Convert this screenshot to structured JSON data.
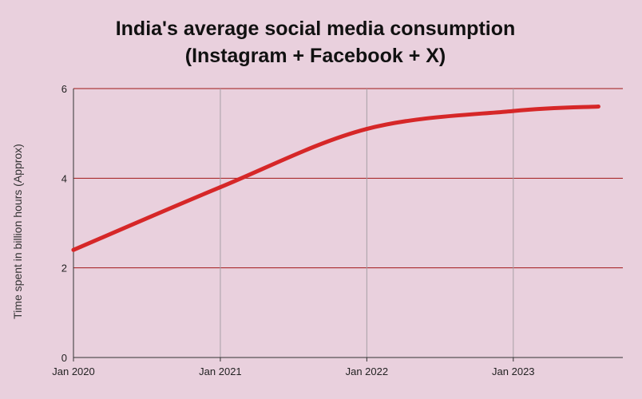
{
  "chart_data": {
    "type": "line",
    "title": "India's average social media consumption",
    "subtitle": "(Instagram + Facebook + X)",
    "xlabel": "",
    "ylabel": "Time spent in billion hours (Approx)",
    "x": [
      "2020-01",
      "2021-01",
      "2022-01",
      "2023-01",
      "2023-08"
    ],
    "x_tick_labels": [
      "Jan 2020",
      "Jan 2021",
      "Jan 2022",
      "Jan 2023"
    ],
    "y_ticks": [
      "0",
      "2",
      "4",
      "6"
    ],
    "ylim": [
      0,
      6
    ],
    "grid": true,
    "series": [
      {
        "values": [
          2.4,
          3.8,
          5.1,
          5.5,
          5.6
        ],
        "color": "#d62728"
      }
    ],
    "colors": {
      "background": "#e9d0dd",
      "horizontal_grid": "#a01818",
      "vertical_grid": "#a8a0a6",
      "axis": "#333333"
    }
  }
}
